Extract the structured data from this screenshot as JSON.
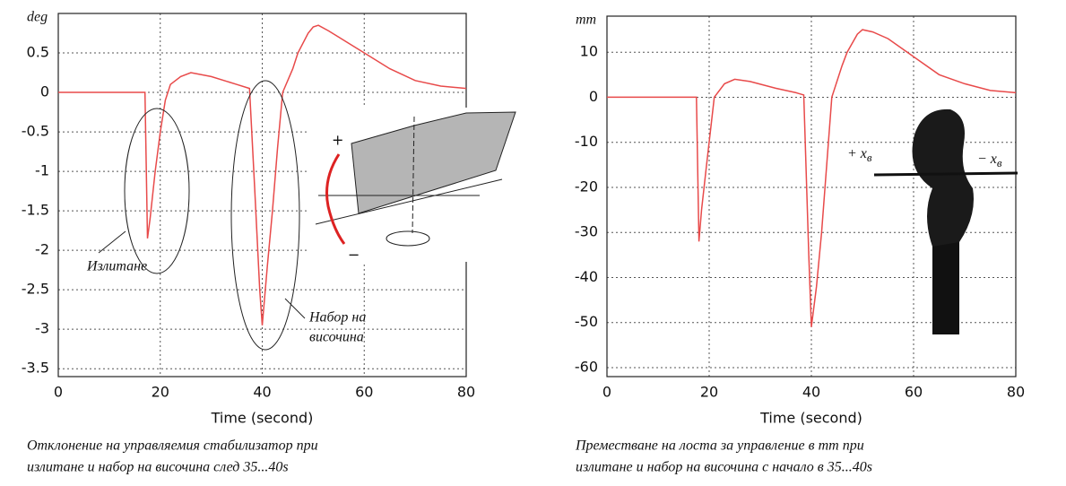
{
  "chart_data": [
    {
      "type": "line",
      "y_label": "deg",
      "x_label": "Time (second)",
      "x": [
        0,
        17,
        17.5,
        18,
        19,
        20,
        21,
        22,
        24,
        26,
        30,
        35,
        37.5,
        38.5,
        39.5,
        40,
        41,
        42,
        43,
        44,
        46,
        47,
        49,
        50,
        51,
        53,
        55,
        60,
        65,
        70,
        75,
        80
      ],
      "values": [
        0,
        0,
        -1.85,
        -1.6,
        -1.0,
        -0.5,
        -0.1,
        0.1,
        0.2,
        0.25,
        0.2,
        0.1,
        0.05,
        -1.2,
        -2.5,
        -2.95,
        -2.2,
        -1.5,
        -0.7,
        0,
        0.3,
        0.5,
        0.75,
        0.83,
        0.85,
        0.78,
        0.7,
        0.5,
        0.3,
        0.15,
        0.08,
        0.05
      ],
      "color": "#e84a4a",
      "xlim": [
        0,
        80
      ],
      "xticks": [
        0,
        20,
        40,
        60,
        80
      ],
      "ylim": [
        -3.6,
        1.0
      ],
      "yticks": [
        -3.5,
        -3,
        -2.5,
        -2,
        -1.5,
        -1,
        -0.5,
        0,
        0.5
      ],
      "grid": true,
      "annotations": [
        {
          "lines": [
            "Излитане"
          ]
        },
        {
          "lines": [
            "Набор на",
            "височина"
          ]
        }
      ],
      "caption": [
        "Отклонение на управляемия стабилизатор при",
        "излитане и набор на височина след 35...40s"
      ]
    },
    {
      "type": "line",
      "y_label": "mm",
      "x_label": "Time (second)",
      "x": [
        0,
        17.5,
        18,
        18.5,
        19.5,
        21,
        23,
        25,
        28,
        33,
        37,
        38.5,
        39.5,
        40,
        41,
        42,
        43,
        44,
        46,
        47,
        49,
        50,
        52,
        55,
        60,
        65,
        70,
        75,
        80
      ],
      "values": [
        0,
        0,
        -32,
        -25,
        -15,
        0,
        3,
        4,
        3.5,
        2,
        1,
        0.5,
        -35,
        -51,
        -42,
        -30,
        -15,
        0,
        7,
        10,
        14,
        15,
        14.5,
        13,
        9,
        5,
        3,
        1.5,
        1
      ],
      "color": "#e84a4a",
      "xlim": [
        0,
        80
      ],
      "xticks": [
        0,
        20,
        40,
        60,
        80
      ],
      "ylim": [
        -62,
        18
      ],
      "yticks": [
        -60,
        -50,
        -40,
        -30,
        -20,
        -10,
        0,
        10
      ],
      "grid": true,
      "annotations": [
        {
          "text": "+ x",
          "sub": "в"
        },
        {
          "text": "− x",
          "sub": "в"
        }
      ],
      "caption": [
        "Преместване на лоста за управление в mm при",
        "излитане и набор на височина с начало в 35...40s"
      ]
    }
  ]
}
